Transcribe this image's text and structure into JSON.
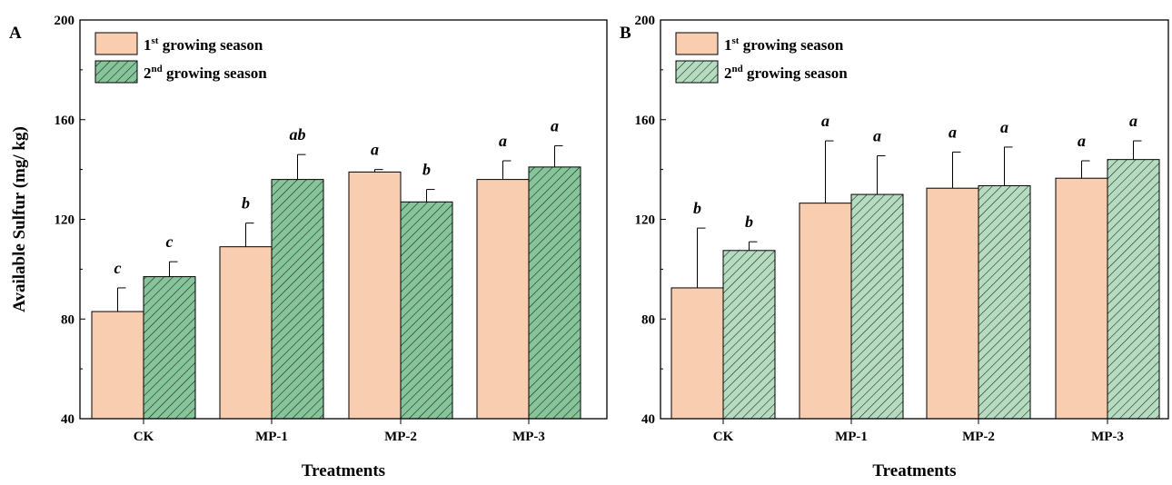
{
  "chart_data": [
    {
      "type": "bar",
      "panel_label": "A",
      "categories": [
        "CK",
        "MP-1",
        "MP-2",
        "MP-3"
      ],
      "xlabel": "Treatments",
      "ylabel": "Available Sulfur (mg/ kg)",
      "ylim": [
        40,
        200
      ],
      "yticks": [
        "40",
        "80",
        "120",
        "160",
        "200"
      ],
      "series": [
        {
          "name_num": "1",
          "name_sup": "st",
          "name_text": " growing season",
          "values": [
            83,
            109,
            139,
            136
          ],
          "errors": [
            9.5,
            9.5,
            1,
            7.5
          ],
          "sig": [
            "c",
            "b",
            "a",
            "a"
          ],
          "fill": "#f9cdb0",
          "hatch": false
        },
        {
          "name_num": "2",
          "name_sup": "nd",
          "name_text": " growing season",
          "values": [
            97,
            136,
            127,
            141
          ],
          "errors": [
            6,
            10,
            5,
            8.5
          ],
          "sig": [
            "c",
            "ab",
            "b",
            "a"
          ],
          "fill": "#86c49a",
          "hatch": true
        }
      ]
    },
    {
      "type": "bar",
      "panel_label": "B",
      "categories": [
        "CK",
        "MP-1",
        "MP-2",
        "MP-3"
      ],
      "xlabel": "Treatments",
      "ylabel": "",
      "ylim": [
        40,
        200
      ],
      "yticks": [
        "40",
        "80",
        "120",
        "160",
        "200"
      ],
      "series": [
        {
          "name_num": "1",
          "name_sup": "st",
          "name_text": " growing season",
          "values": [
            92.5,
            126.5,
            132.5,
            136.5
          ],
          "errors": [
            24,
            25,
            14.5,
            7
          ],
          "sig": [
            "b",
            "a",
            "a",
            "a"
          ],
          "fill": "#f9cdb0",
          "hatch": false
        },
        {
          "name_num": "2",
          "name_sup": "nd",
          "name_text": " growing season",
          "values": [
            107.5,
            130,
            133.5,
            144
          ],
          "errors": [
            3.5,
            15.5,
            15.5,
            7.5
          ],
          "sig": [
            "b",
            "a",
            "a",
            "a"
          ],
          "fill": "#b6dcc0",
          "hatch": true
        }
      ]
    }
  ]
}
